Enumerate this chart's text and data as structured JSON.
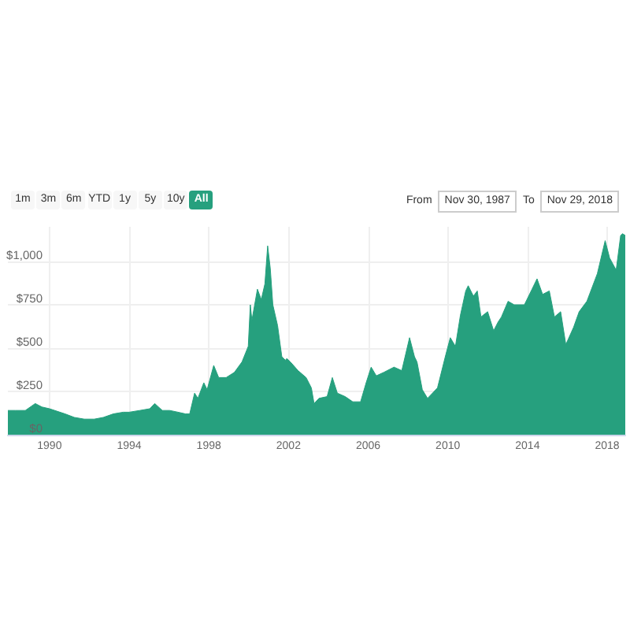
{
  "chart_data": {
    "type": "area",
    "color": "#26a07e",
    "x": [
      "1987-11-30",
      "1988-04-15",
      "1988-10-15",
      "1989-04-15",
      "1989-08-15",
      "1990-01-01",
      "1990-10-15",
      "1991-04-01",
      "1991-10-01",
      "1992-04-01",
      "1992-09-15",
      "1993-03-15",
      "1993-09-15",
      "1994-01-01",
      "1994-07-15",
      "1995-01-15",
      "1995-04-15",
      "1995-09-01",
      "1996-01-15",
      "1996-06-15",
      "1996-11-01",
      "1997-01-15",
      "1997-04-15",
      "1997-06-15",
      "1997-10-01",
      "1997-12-01",
      "1998-04-01",
      "1998-07-01",
      "1998-11-15",
      "1999-04-15",
      "1999-09-01",
      "1999-12-25",
      "2000-02-01",
      "2000-03-01",
      "2000-06-10",
      "2000-08-20",
      "2000-10-25",
      "2000-12-15",
      "2001-02-01",
      "2001-03-20",
      "2001-06-15",
      "2001-09-01",
      "2001-11-05",
      "2001-12-01",
      "2002-02-05",
      "2002-06-25",
      "2002-11-20",
      "2003-02-25",
      "2003-04-15",
      "2003-07-15",
      "2003-12-10",
      "2004-03-15",
      "2004-06-15",
      "2004-11-05",
      "2005-03-25",
      "2005-08-15",
      "2005-11-25",
      "2006-02-25",
      "2006-05-30",
      "2006-10-15",
      "2007-04-20",
      "2007-09-10",
      "2008-01-30",
      "2008-04-30",
      "2008-06-15",
      "2008-09-20",
      "2008-12-25",
      "2009-06-25",
      "2009-11-15",
      "2010-02-15",
      "2010-05-20",
      "2010-08-20",
      "2010-11-25",
      "2011-01-10",
      "2011-04-15",
      "2011-06-25",
      "2011-09-01",
      "2012-01-01",
      "2012-04-20",
      "2012-07-10",
      "2012-09-10",
      "2013-01-10",
      "2013-05-01",
      "2013-11-05",
      "2014-03-25",
      "2014-06-25",
      "2014-10-05",
      "2015-02-05",
      "2015-05-10",
      "2015-09-01",
      "2015-12-05",
      "2016-04-25",
      "2016-08-05",
      "2016-12-25",
      "2017-07-05",
      "2017-11-25",
      "2018-02-15",
      "2018-06-15",
      "2018-09-05",
      "2018-10-10",
      "2018-11-29"
    ],
    "values": [
      140,
      140,
      140,
      180,
      160,
      150,
      120,
      100,
      90,
      90,
      100,
      120,
      130,
      130,
      140,
      150,
      180,
      140,
      140,
      130,
      120,
      120,
      240,
      210,
      300,
      260,
      400,
      330,
      330,
      360,
      420,
      510,
      750,
      660,
      840,
      780,
      870,
      1090,
      960,
      750,
      630,
      450,
      430,
      440,
      420,
      370,
      330,
      270,
      180,
      210,
      220,
      330,
      240,
      220,
      190,
      190,
      300,
      390,
      340,
      360,
      390,
      370,
      560,
      450,
      420,
      260,
      210,
      270,
      450,
      560,
      510,
      690,
      830,
      860,
      800,
      830,
      680,
      710,
      600,
      650,
      680,
      770,
      750,
      750,
      840,
      900,
      810,
      830,
      680,
      710,
      520,
      620,
      710,
      770,
      930,
      1120,
      1020,
      950,
      1150,
      1160,
      1150
    ],
    "xlim": [
      "1987-11-30",
      "2018-11-29"
    ],
    "xticks": [
      "1990",
      "1994",
      "1998",
      "2002",
      "2006",
      "2010",
      "2014",
      "2018"
    ],
    "ylim": [
      0,
      1200
    ],
    "yticks": [
      {
        "value": 0,
        "label": "$0"
      },
      {
        "value": 250,
        "label": "$250"
      },
      {
        "value": 500,
        "label": "$500"
      },
      {
        "value": 750,
        "label": "$750"
      },
      {
        "value": 1000,
        "label": "$1,000"
      }
    ],
    "grid": true,
    "annotations": [
      "1m",
      "3m",
      "6m",
      "YTD",
      "1y",
      "5y",
      "10y",
      "All",
      "From",
      "Nov 30, 1987",
      "To",
      "Nov 29, 2018"
    ]
  }
}
